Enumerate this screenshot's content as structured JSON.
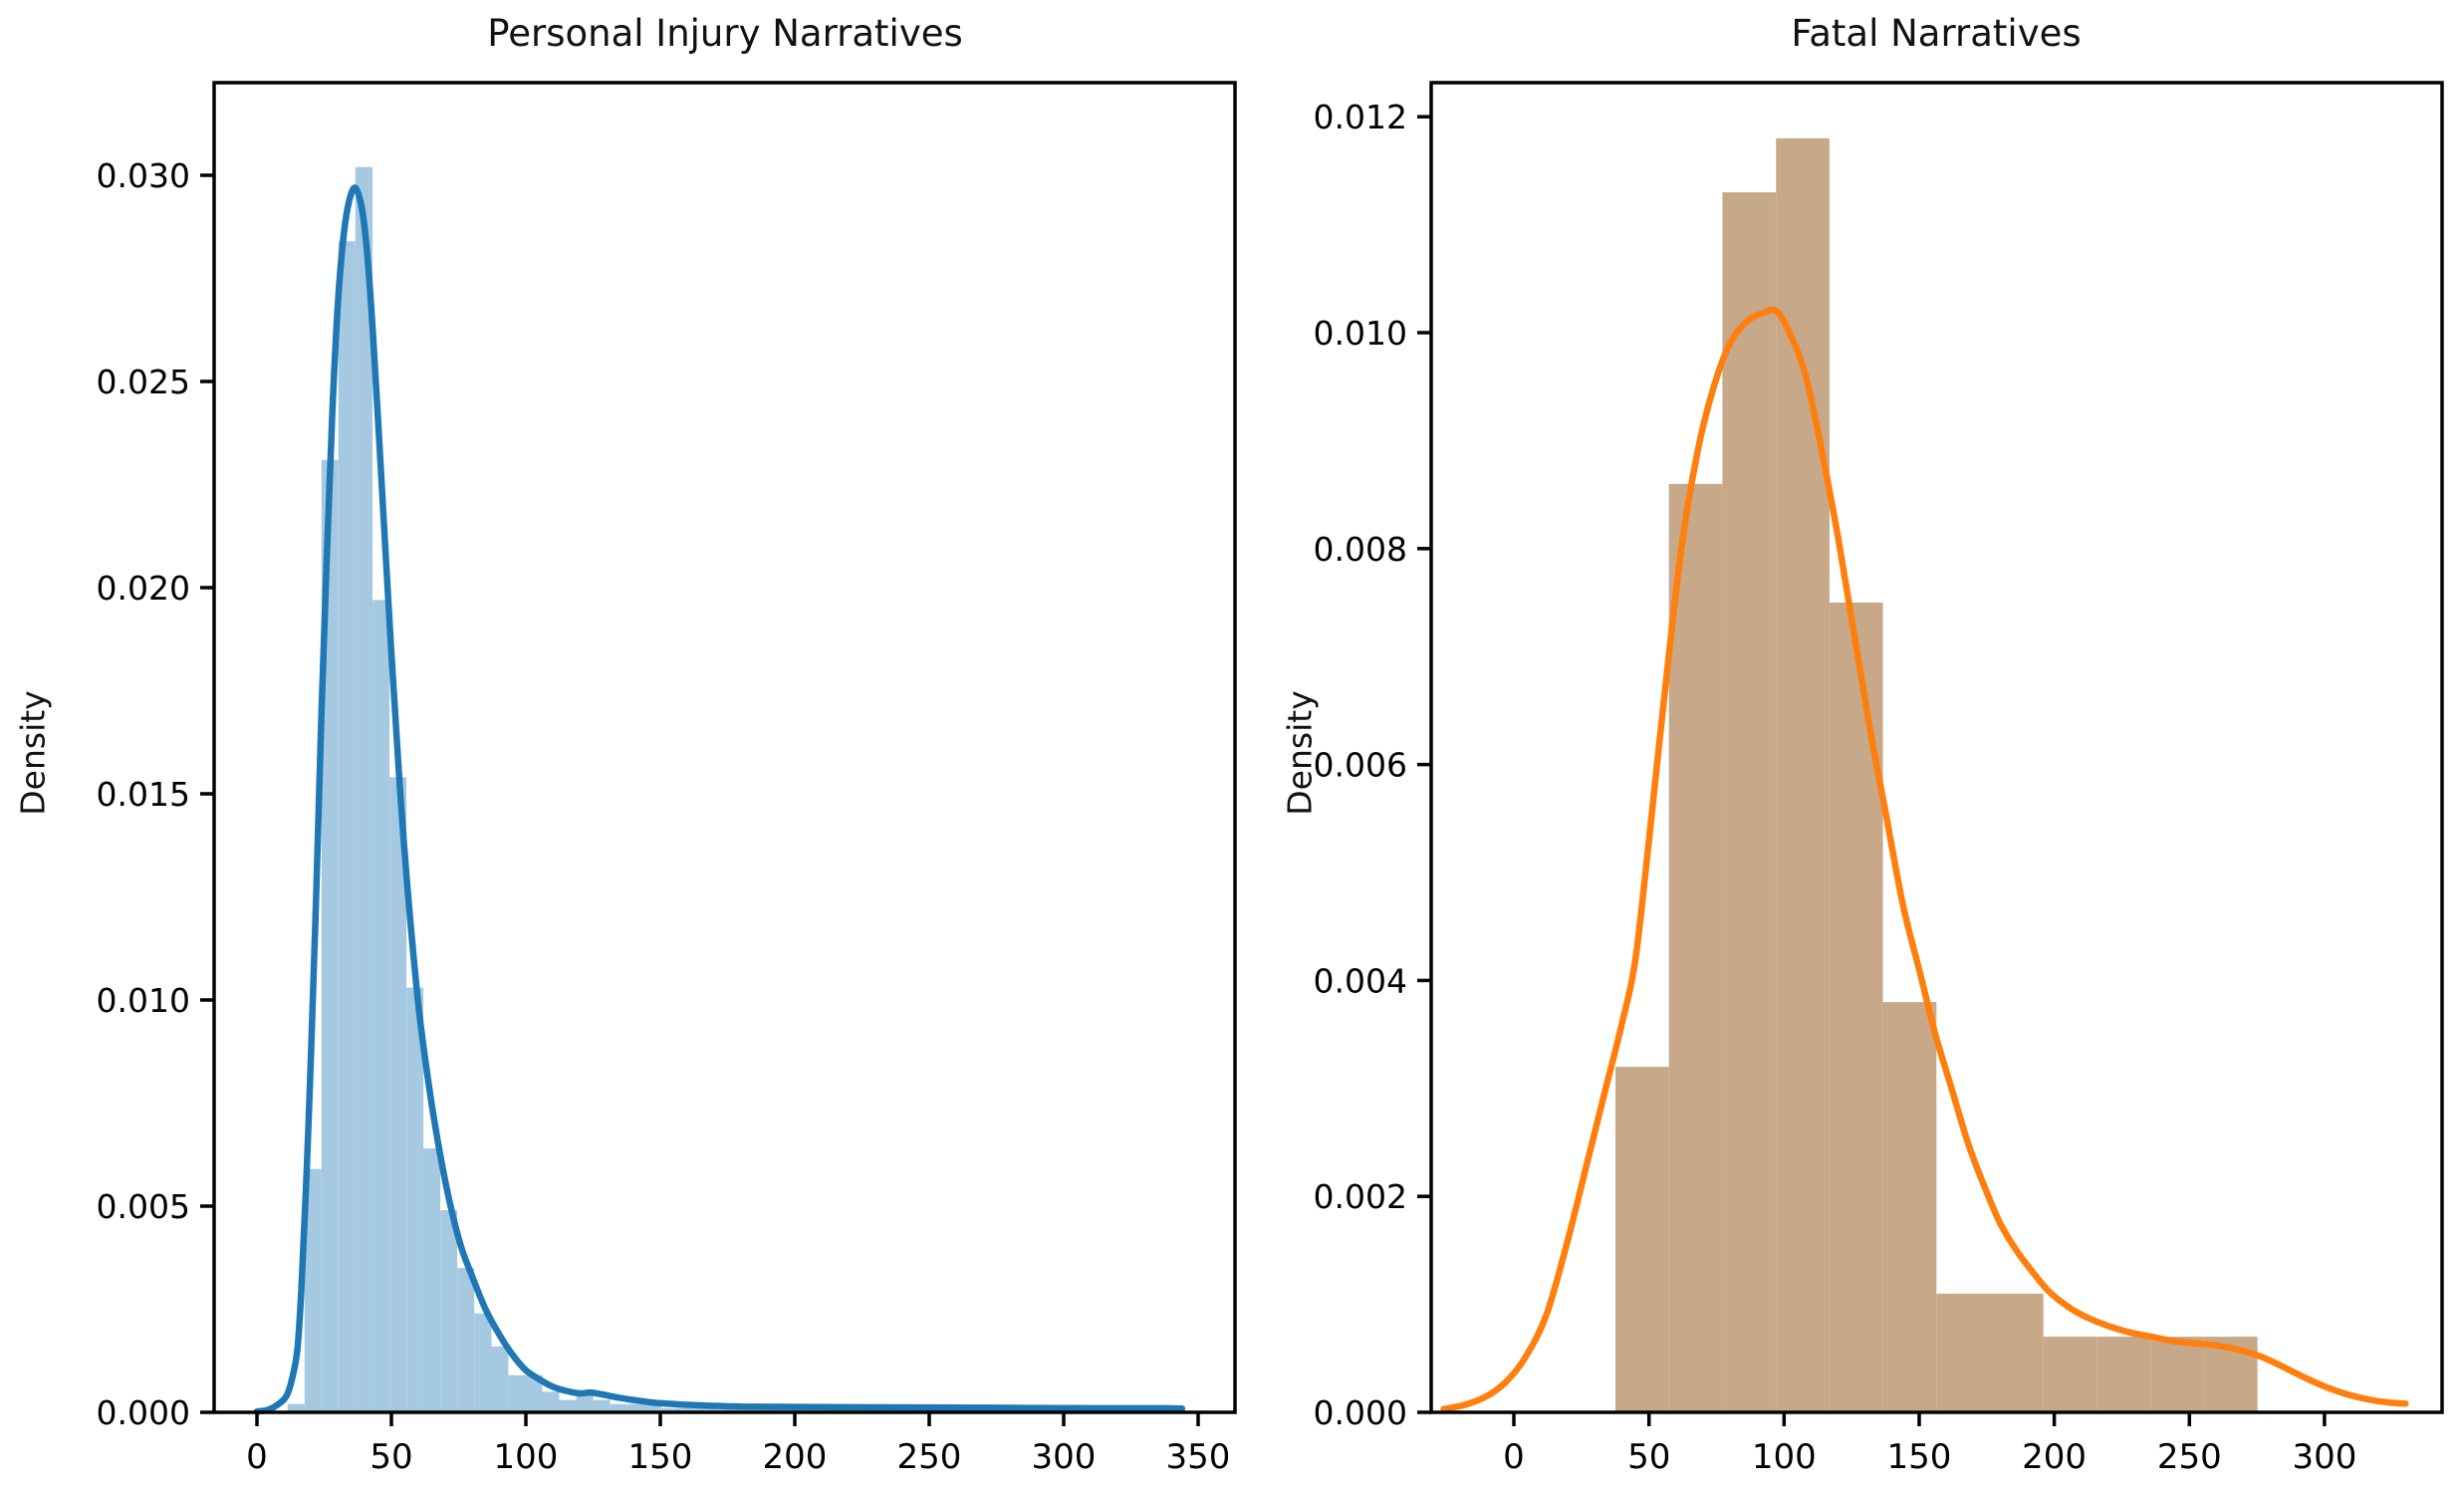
{
  "figure": {
    "background": "#ffffff",
    "text_color": "#111111"
  },
  "chart_data": [
    {
      "type": "histogram+kde",
      "title": "Personal Injury Narratives",
      "xlabel": "",
      "ylabel": "Density",
      "grid": false,
      "legend": null,
      "xlim": [
        -16,
        368
      ],
      "ylim": [
        0,
        0.03225
      ],
      "xticks": [
        0,
        50,
        100,
        150,
        200,
        250,
        300,
        350
      ],
      "xtick_labels": [
        "0",
        "50",
        "100",
        "150",
        "200",
        "250",
        "300",
        "350"
      ],
      "yticks": [
        0.0,
        0.005,
        0.01,
        0.015,
        0.02,
        0.025,
        0.03
      ],
      "ytick_labels": [
        "0.000",
        "0.005",
        "0.010",
        "0.015",
        "0.020",
        "0.025",
        "0.030"
      ],
      "bar_color": "#a6c9e2",
      "line_color": "#1f77b4",
      "bars": [
        [
          11.4,
          17.7,
          0.0002
        ],
        [
          17.7,
          24.0,
          0.0059
        ],
        [
          24.0,
          30.3,
          0.0231
        ],
        [
          30.3,
          36.6,
          0.0284
        ],
        [
          36.6,
          43.0,
          0.0302
        ],
        [
          43.0,
          49.3,
          0.0197
        ],
        [
          49.3,
          55.6,
          0.0154
        ],
        [
          55.6,
          61.9,
          0.0103
        ],
        [
          61.9,
          68.2,
          0.0064
        ],
        [
          68.2,
          74.5,
          0.0049
        ],
        [
          74.5,
          80.8,
          0.0035
        ],
        [
          80.8,
          87.2,
          0.0024
        ],
        [
          87.2,
          93.5,
          0.0016
        ],
        [
          93.5,
          99.8,
          0.0009
        ],
        [
          99.8,
          106.1,
          0.0009
        ],
        [
          106.1,
          112.4,
          0.0005
        ],
        [
          112.4,
          118.7,
          0.0003
        ],
        [
          118.7,
          125.0,
          0.0004
        ],
        [
          125.0,
          131.4,
          0.0003
        ],
        [
          131.4,
          137.7,
          0.0002
        ],
        [
          137.7,
          150.3,
          0.0002
        ],
        [
          150.3,
          163.0,
          0.0001
        ],
        [
          163.0,
          200.0,
          0.0001
        ],
        [
          200.0,
          260.0,
          8e-05
        ],
        [
          260.0,
          320.0,
          7e-05
        ]
      ],
      "kde": [
        [
          0,
          2e-05
        ],
        [
          4,
          6e-05
        ],
        [
          8,
          0.0002
        ],
        [
          11,
          0.0004
        ],
        [
          13,
          0.0008
        ],
        [
          15,
          0.0015
        ],
        [
          16.5,
          0.003
        ],
        [
          18.5,
          0.0059
        ],
        [
          20,
          0.0085
        ],
        [
          22,
          0.0125
        ],
        [
          24,
          0.017
        ],
        [
          26,
          0.0208
        ],
        [
          28,
          0.0242
        ],
        [
          30,
          0.0268
        ],
        [
          32,
          0.0284
        ],
        [
          34,
          0.0293
        ],
        [
          36.5,
          0.0297
        ],
        [
          39,
          0.0292
        ],
        [
          41,
          0.0281
        ],
        [
          43,
          0.0263
        ],
        [
          45,
          0.0241
        ],
        [
          47,
          0.0218
        ],
        [
          50,
          0.0184
        ],
        [
          53,
          0.0153
        ],
        [
          56,
          0.0127
        ],
        [
          60,
          0.0099
        ],
        [
          64,
          0.0079
        ],
        [
          68,
          0.0063
        ],
        [
          72,
          0.005
        ],
        [
          76,
          0.004
        ],
        [
          80,
          0.0033
        ],
        [
          85,
          0.0025
        ],
        [
          90,
          0.0019
        ],
        [
          95,
          0.0014
        ],
        [
          100,
          0.00102
        ],
        [
          105,
          0.0008
        ],
        [
          110,
          0.00062
        ],
        [
          115,
          0.00052
        ],
        [
          120,
          0.00046
        ],
        [
          124,
          0.00048
        ],
        [
          128,
          0.00044
        ],
        [
          134,
          0.00036
        ],
        [
          140,
          0.0003
        ],
        [
          147,
          0.00024
        ],
        [
          155,
          0.0002
        ],
        [
          165,
          0.00017
        ],
        [
          180,
          0.00014
        ],
        [
          200,
          0.00013
        ],
        [
          230,
          0.00012
        ],
        [
          270,
          0.00011
        ],
        [
          310,
          0.0001
        ],
        [
          335,
          0.0001
        ],
        [
          344,
          9e-05
        ]
      ]
    },
    {
      "type": "histogram+kde",
      "title": "Fatal Narratives",
      "xlabel": "",
      "ylabel": "Density",
      "grid": false,
      "legend": null,
      "xlim": [
        -31,
        344
      ],
      "ylim": [
        0,
        0.01232
      ],
      "xticks": [
        0,
        50,
        100,
        150,
        200,
        250,
        300
      ],
      "xtick_labels": [
        "0",
        "50",
        "100",
        "150",
        "200",
        "250",
        "300"
      ],
      "yticks": [
        0.0,
        0.002,
        0.004,
        0.006,
        0.008,
        0.01,
        0.012
      ],
      "ytick_labels": [
        "0.000",
        "0.002",
        "0.004",
        "0.006",
        "0.008",
        "0.010",
        "0.012"
      ],
      "bar_color": "#c7a98a",
      "line_color": "#ff7f0e",
      "bars": [
        [
          37.6,
          57.4,
          0.0032
        ],
        [
          57.4,
          77.2,
          0.0086
        ],
        [
          77.2,
          97.0,
          0.0113
        ],
        [
          97.0,
          116.8,
          0.0118
        ],
        [
          116.8,
          136.6,
          0.0075
        ],
        [
          136.6,
          156.4,
          0.0038
        ],
        [
          156.4,
          176.2,
          0.0011
        ],
        [
          176.2,
          196.0,
          0.0011
        ],
        [
          196.0,
          215.8,
          0.0007
        ],
        [
          215.8,
          235.6,
          0.0007
        ],
        [
          235.6,
          255.4,
          0.0007
        ],
        [
          255.4,
          275.2,
          0.0007
        ]
      ],
      "kde": [
        [
          -26,
          3e-05
        ],
        [
          -18,
          7e-05
        ],
        [
          -10,
          0.00015
        ],
        [
          -3,
          0.00028
        ],
        [
          4,
          0.0005
        ],
        [
          12,
          0.0009
        ],
        [
          20,
          0.0016
        ],
        [
          28,
          0.0024
        ],
        [
          34,
          0.003
        ],
        [
          40,
          0.0036
        ],
        [
          45,
          0.0042
        ],
        [
          50,
          0.0053
        ],
        [
          56,
          0.0067
        ],
        [
          62,
          0.008
        ],
        [
          68,
          0.0089
        ],
        [
          74,
          0.0095
        ],
        [
          80,
          0.0099
        ],
        [
          86,
          0.0101
        ],
        [
          92,
          0.01018
        ],
        [
          97,
          0.0102
        ],
        [
          102,
          0.01
        ],
        [
          108,
          0.0096
        ],
        [
          114,
          0.0089
        ],
        [
          120,
          0.0081
        ],
        [
          126,
          0.0072
        ],
        [
          132,
          0.0063
        ],
        [
          138,
          0.0055
        ],
        [
          144,
          0.0047
        ],
        [
          150,
          0.0041
        ],
        [
          156,
          0.0035
        ],
        [
          162,
          0.003
        ],
        [
          168,
          0.0025
        ],
        [
          174,
          0.0021
        ],
        [
          180,
          0.00175
        ],
        [
          186,
          0.0015
        ],
        [
          192,
          0.0013
        ],
        [
          198,
          0.00112
        ],
        [
          205,
          0.00098
        ],
        [
          212,
          0.00088
        ],
        [
          220,
          0.0008
        ],
        [
          228,
          0.00074
        ],
        [
          236,
          0.0007
        ],
        [
          244,
          0.00066
        ],
        [
          252,
          0.00064
        ],
        [
          260,
          0.00062
        ],
        [
          268,
          0.00058
        ],
        [
          276,
          0.00052
        ],
        [
          284,
          0.00043
        ],
        [
          292,
          0.00033
        ],
        [
          300,
          0.00024
        ],
        [
          308,
          0.00017
        ],
        [
          316,
          0.00012
        ],
        [
          324,
          9e-05
        ],
        [
          330,
          8e-05
        ]
      ]
    }
  ]
}
